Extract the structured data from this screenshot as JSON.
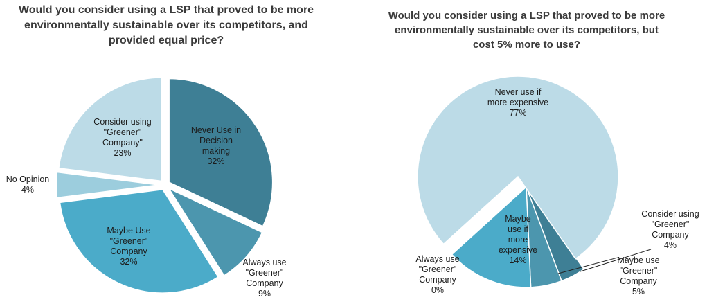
{
  "chart_data": [
    {
      "type": "pie",
      "title": "Would you consider using a LSP that proved to be more\nenvironmentally sustainable over its competitors, and\nprovided equal price?",
      "slices": [
        {
          "label": "Never Use in\nDecision\nmaking",
          "pct_label": "32%",
          "value": 32,
          "color": "#3e7f95"
        },
        {
          "label": "Always use\n\"Greener\"\nCompany",
          "pct_label": "9%",
          "value": 9,
          "color": "#4c96ae"
        },
        {
          "label": "Maybe Use\n\"Greener\"\nCompany",
          "pct_label": "32%",
          "value": 32,
          "color": "#4babc9"
        },
        {
          "label": "No Opinion",
          "pct_label": "4%",
          "value": 4,
          "color": "#9ccddd"
        },
        {
          "label": "Consider using\n\"Greener\"\nCompany\"",
          "pct_label": "23%",
          "value": 23,
          "color": "#bcdbe7"
        }
      ]
    },
    {
      "type": "pie",
      "title": "Would you consider using a LSP that proved to be more\nenvironmentally sustainable over its competitors, but\ncost 5% more to use?",
      "slices": [
        {
          "label": "Consider using\n\"Greener\"\nCompany",
          "pct_label": "4%",
          "value": 4,
          "color": "#3e7f95"
        },
        {
          "label": "Maybe use\n\"Greener\"\nCompany",
          "pct_label": "5%",
          "value": 5,
          "color": "#4c96ae"
        },
        {
          "label": "Maybe\nuse if\nmore\nexpensive",
          "pct_label": "14%",
          "value": 14,
          "color": "#4babc9"
        },
        {
          "label": "Always use\n\"Greener\"\nCompany",
          "pct_label": "0%",
          "value": 0,
          "color": "#9ccddd"
        },
        {
          "label": "Never use if\nmore expensive",
          "pct_label": "77%",
          "value": 77,
          "color": "#bcdbe7"
        }
      ]
    }
  ]
}
